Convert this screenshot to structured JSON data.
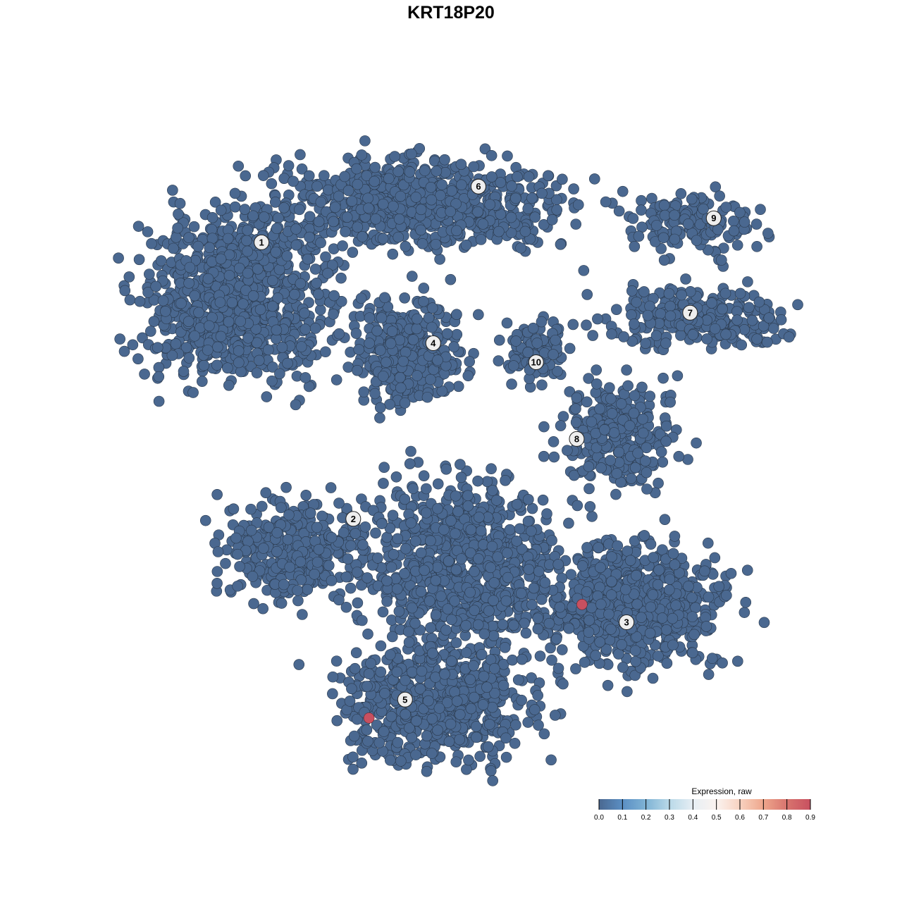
{
  "chart_data": {
    "type": "scatter",
    "title": "KRT18P20",
    "xlabel": "",
    "ylabel": "",
    "grid": false,
    "axes_visible": false,
    "xlim": [
      -50,
      50
    ],
    "ylim": [
      -50,
      50
    ],
    "point_color_default": "#4a6890",
    "clusters": [
      {
        "label": "1",
        "label_pos": [
          -31.6,
          32.9
        ],
        "center": [
          -35,
          24.4
        ],
        "spread": [
          14,
          13
        ],
        "n": 900,
        "expression": 0.0
      },
      {
        "label": "6",
        "label_pos": [
          1.5,
          41.7
        ],
        "center": [
          -8,
          39
        ],
        "spread": [
          22,
          7
        ],
        "n": 800,
        "expression": 0.0
      },
      {
        "label": "4",
        "label_pos": [
          -5.4,
          17
        ],
        "center": [
          -9.1,
          16.1
        ],
        "spread": [
          8,
          8.5
        ],
        "n": 350,
        "expression": 0.0
      },
      {
        "label": "9",
        "label_pos": [
          37.4,
          36.7
        ],
        "center": [
          35,
          36
        ],
        "spread": [
          9,
          5
        ],
        "n": 150,
        "expression": 0.0
      },
      {
        "label": "7",
        "label_pos": [
          33.8,
          21.8
        ],
        "center": [
          35,
          21
        ],
        "spread": [
          13,
          4.5
        ],
        "n": 260,
        "expression": 0.0
      },
      {
        "label": "10",
        "label_pos": [
          10.3,
          14
        ],
        "center": [
          10.2,
          15.6
        ],
        "spread": [
          5,
          5.5
        ],
        "n": 90,
        "expression": 0.0
      },
      {
        "label": "8",
        "label_pos": [
          16.5,
          1.9
        ],
        "center": [
          23,
          3
        ],
        "spread": [
          8.6,
          8
        ],
        "n": 280,
        "expression": 0.0
      },
      {
        "label": "2",
        "label_pos": [
          -17.6,
          -10.7
        ],
        "center": [
          -26.3,
          -15.6
        ],
        "spread": [
          11,
          7.8
        ],
        "n": 350,
        "expression": 0.0
      },
      {
        "label": "3",
        "label_pos": [
          24.1,
          -27
        ],
        "center": [
          25.3,
          -24.4
        ],
        "spread": [
          14,
          10
        ],
        "n": 650,
        "expression": 0.0
      },
      {
        "label": "5",
        "label_pos": [
          -9.7,
          -39.2
        ],
        "center": [
          -4.8,
          -40
        ],
        "spread": [
          14,
          9
        ],
        "n": 650,
        "expression": 0.0
      },
      {
        "label": "",
        "label_pos": null,
        "center": [
          -0.5,
          -17.8
        ],
        "spread": [
          14,
          13
        ],
        "n": 850,
        "expression": 0.0
      }
    ],
    "highlighted_points": [
      {
        "x": 17.3,
        "y": -24.2,
        "expression": 0.9
      },
      {
        "x": -15.2,
        "y": -42.1,
        "expression": 0.9
      }
    ],
    "colorbar": {
      "title": "Expression, raw",
      "ticks": [
        "0.0",
        "0.1",
        "0.2",
        "0.3",
        "0.4",
        "0.5",
        "0.6",
        "0.7",
        "0.8",
        "0.9"
      ],
      "range": [
        0,
        0.9
      ],
      "colors": [
        "#4a6890",
        "#5b8fc4",
        "#7fb3d5",
        "#b9d9e8",
        "#e6eef4",
        "#fbf3ef",
        "#f8d2c0",
        "#eea68c",
        "#d8746e",
        "#c85060"
      ]
    }
  }
}
